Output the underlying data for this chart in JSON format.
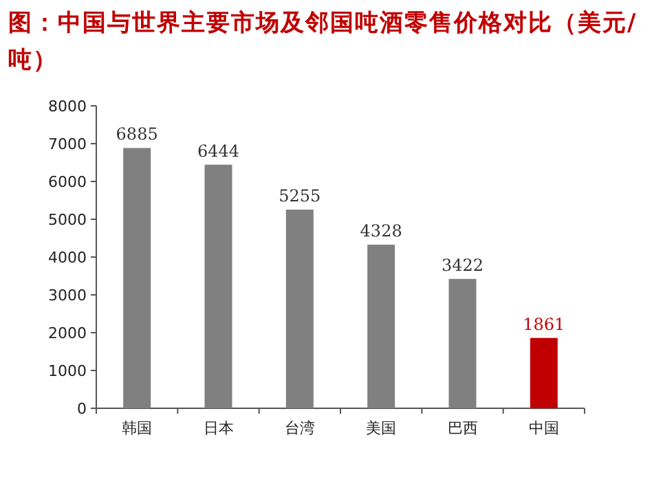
{
  "chart_data": {
    "type": "bar",
    "title": "图：中国与世界主要市场及邻国吨酒零售价格对比（美元/吨）",
    "categories": [
      "韩国",
      "日本",
      "台湾",
      "美国",
      "巴西",
      "中国"
    ],
    "values": [
      6885,
      6444,
      5255,
      4328,
      3422,
      1861
    ],
    "colors": [
      "#808080",
      "#808080",
      "#808080",
      "#808080",
      "#808080",
      "#c00000"
    ],
    "ylim": [
      0,
      8000
    ],
    "yticks": [
      0,
      1000,
      2000,
      3000,
      4000,
      5000,
      6000,
      7000,
      8000
    ],
    "data_labels": true
  }
}
